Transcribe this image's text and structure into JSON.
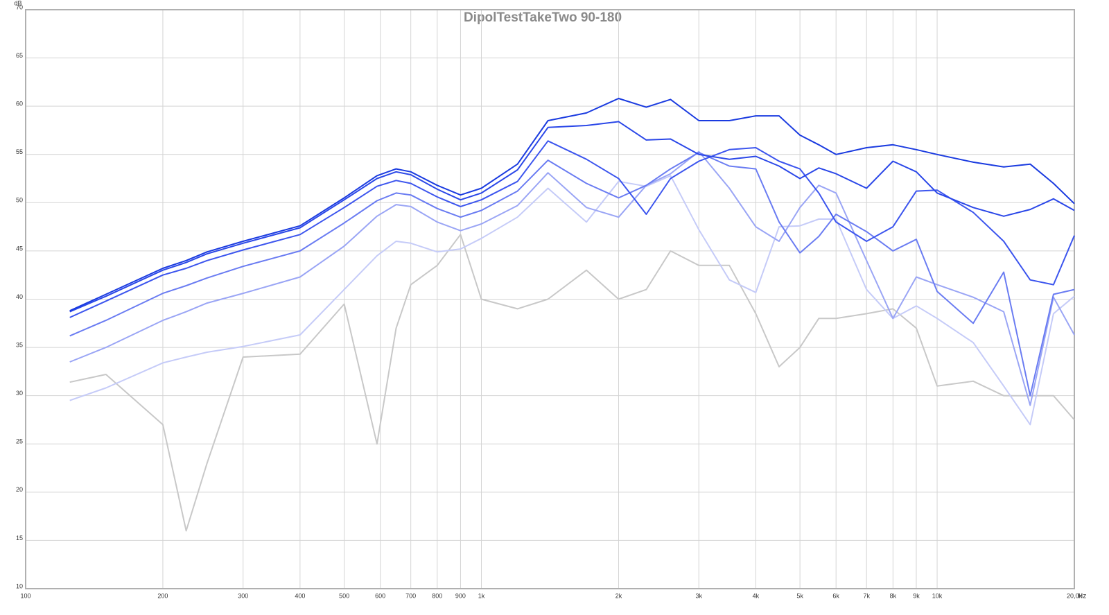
{
  "chart_data": {
    "type": "line",
    "title": "DipolTestTakeTwo 90-180",
    "x_unit": "Hz",
    "y_unit": "dB",
    "xscale": "log",
    "grid": true,
    "xlim": [
      100,
      20000
    ],
    "ylim": [
      10,
      70
    ],
    "xticks": [
      100,
      200,
      300,
      400,
      500,
      600,
      700,
      800,
      900,
      {
        "value": 1000,
        "label": "1k"
      },
      {
        "value": 2000,
        "label": "2k"
      },
      {
        "value": 3000,
        "label": "3k"
      },
      {
        "value": 4000,
        "label": "4k"
      },
      {
        "value": 5000,
        "label": "5k"
      },
      {
        "value": 6000,
        "label": "6k"
      },
      {
        "value": 7000,
        "label": "7k"
      },
      {
        "value": 8000,
        "label": "8k"
      },
      {
        "value": 9000,
        "label": "9k"
      },
      {
        "value": 10000,
        "label": "10k"
      },
      {
        "value": 20000,
        "label": "20,0k"
      }
    ],
    "yticks": [
      10,
      15,
      20,
      25,
      30,
      35,
      40,
      45,
      50,
      55,
      60,
      65,
      70
    ],
    "x": [
      125,
      150,
      200,
      225,
      250,
      300,
      400,
      500,
      590,
      650,
      700,
      800,
      900,
      1000,
      1200,
      1400,
      1700,
      2000,
      2300,
      2600,
      3000,
      3500,
      4000,
      4500,
      5000,
      5500,
      6000,
      7000,
      8000,
      9000,
      10000,
      12000,
      14000,
      16000,
      18000,
      20000
    ],
    "series": [
      {
        "color": "#1a3be0",
        "values": [
          38.8,
          40.5,
          43.2,
          44,
          44.9,
          46,
          47.6,
          50.5,
          52.8,
          53.5,
          53.2,
          51.8,
          50.8,
          51.5,
          54,
          58.5,
          59.3,
          60.8,
          59.9,
          60.7,
          58.5,
          58.5,
          59,
          59,
          57,
          56,
          55,
          55.7,
          56,
          55.5,
          55,
          54.2,
          53.7,
          54,
          52,
          49.9
        ]
      },
      {
        "color": "#2a47e8",
        "values": [
          38.7,
          40.3,
          43,
          43.8,
          44.7,
          45.8,
          47.4,
          50.3,
          52.5,
          53.2,
          52.9,
          51.4,
          50.3,
          51,
          53.4,
          57.8,
          58,
          58.4,
          56.5,
          56.6,
          55,
          54.5,
          54.8,
          53.8,
          52.5,
          53.6,
          53,
          51.5,
          54.3,
          53.2,
          51,
          49.5,
          48.6,
          49.3,
          50.4,
          49.2
        ]
      },
      {
        "color": "#3c55ee",
        "values": [
          38.1,
          39.8,
          42.5,
          43.2,
          44,
          45.1,
          46.7,
          49.5,
          51.7,
          52.3,
          52,
          50.6,
          49.6,
          50.3,
          52.2,
          56.4,
          54.5,
          52.5,
          48.8,
          52.5,
          54.3,
          55.5,
          55.7,
          54.3,
          53.5,
          51,
          48,
          46,
          47.5,
          51.2,
          51.3,
          49,
          46,
          42,
          41.5,
          46.6
        ]
      },
      {
        "color": "#6a7cf2",
        "values": [
          36.2,
          37.8,
          40.6,
          41.4,
          42.2,
          43.4,
          45,
          47.9,
          50.2,
          51,
          50.8,
          49.4,
          48.5,
          49.2,
          51.2,
          54.4,
          52,
          50.5,
          51.8,
          53.5,
          55.2,
          53.8,
          53.5,
          48,
          44.8,
          46.5,
          48.8,
          47,
          45,
          46.2,
          40.8,
          37.5,
          42.8,
          30,
          40.5,
          41
        ]
      },
      {
        "color": "#9aa5f5",
        "values": [
          33.5,
          35,
          37.8,
          38.7,
          39.6,
          40.6,
          42.3,
          45.5,
          48.6,
          49.8,
          49.6,
          48,
          47.1,
          47.8,
          49.7,
          53.1,
          49.5,
          48.5,
          51.8,
          53,
          55.3,
          51.5,
          47.5,
          46,
          49.5,
          51.8,
          51,
          44,
          38,
          42.3,
          41.5,
          40.2,
          38.7,
          29,
          40.2,
          36.3
        ]
      },
      {
        "color": "#c5cbf8",
        "values": [
          29.5,
          30.8,
          33.4,
          34,
          34.5,
          35.1,
          36.3,
          41,
          44.5,
          46,
          45.8,
          44.9,
          45.2,
          46.3,
          48.5,
          51.5,
          48,
          52.2,
          51.7,
          52.8,
          47.2,
          42,
          40.7,
          47.5,
          47.6,
          48.3,
          48.3,
          41,
          38,
          39.3,
          38,
          35.5,
          31,
          27,
          38.5,
          40.3
        ]
      },
      {
        "color": "#c8c8c8",
        "values": [
          31.4,
          32.2,
          27,
          16,
          23,
          34,
          34.3,
          39.5,
          25,
          37,
          41.5,
          43.5,
          46.7,
          40,
          39,
          40,
          43,
          40,
          41,
          45,
          43.5,
          43.5,
          38.5,
          33,
          35,
          38,
          38,
          38.5,
          39,
          37,
          31,
          31.5,
          30,
          30,
          30,
          27.5
        ]
      }
    ]
  }
}
